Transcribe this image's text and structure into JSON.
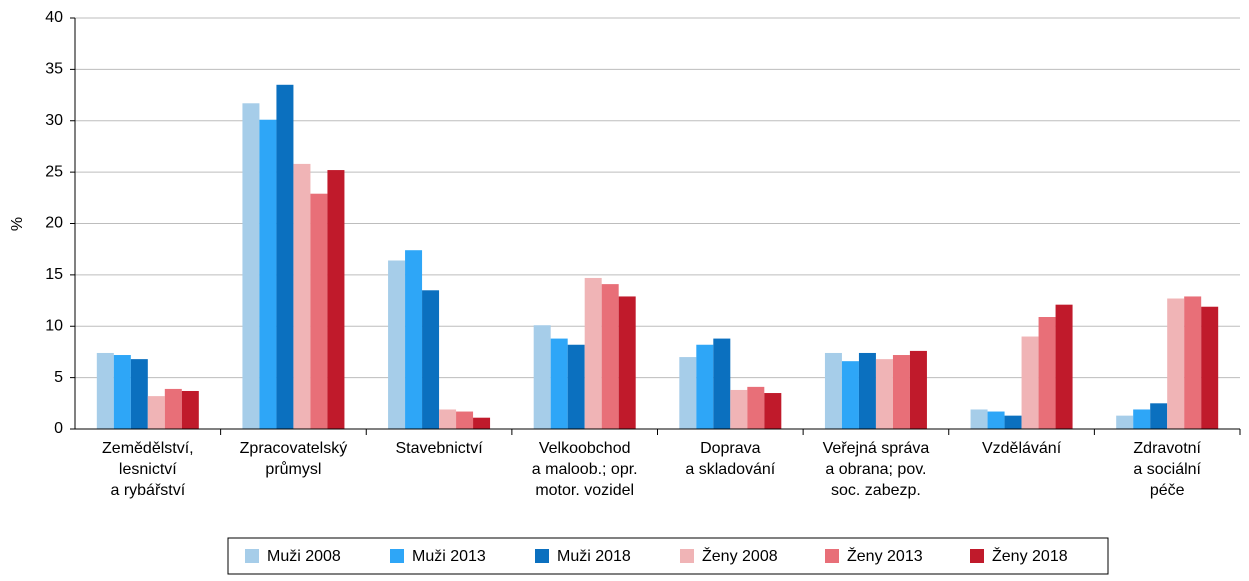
{
  "chart_data": {
    "type": "bar",
    "ylabel": "%",
    "categories": [
      [
        "Zemědělství,",
        "lesnictví",
        "a rybářství"
      ],
      [
        "Zpracovatelský",
        "průmysl"
      ],
      [
        "Stavebnictví"
      ],
      [
        "Velkoobchod",
        "a maloob.; opr.",
        "motor. vozidel"
      ],
      [
        "Doprava",
        "a skladování"
      ],
      [
        "Veřejná správa",
        "a obrana; pov.",
        "soc. zabezp."
      ],
      [
        "Vzdělávání"
      ],
      [
        "Zdravotní",
        "a sociální",
        "péče"
      ]
    ],
    "series": [
      {
        "name": "Muži 2008",
        "color": "#a6cde9",
        "values": [
          7.4,
          31.7,
          16.4,
          10.1,
          7.0,
          7.4,
          1.9,
          1.3
        ]
      },
      {
        "name": "Muži 2013",
        "color": "#2ea6f7",
        "values": [
          7.2,
          30.1,
          17.4,
          8.8,
          8.2,
          6.6,
          1.7,
          1.9
        ]
      },
      {
        "name": "Muži 2018",
        "color": "#0b70bf",
        "values": [
          6.8,
          33.5,
          13.5,
          8.2,
          8.8,
          7.4,
          1.3,
          2.5
        ]
      },
      {
        "name": "Ženy 2008",
        "color": "#f0b4b6",
        "values": [
          3.2,
          25.8,
          1.9,
          14.7,
          3.8,
          6.8,
          9.0,
          12.7
        ]
      },
      {
        "name": "Ženy 2013",
        "color": "#e86f78",
        "values": [
          3.9,
          22.9,
          1.7,
          14.1,
          4.1,
          7.2,
          10.9,
          12.9
        ]
      },
      {
        "name": "Ženy 2018",
        "color": "#c01a2b",
        "values": [
          3.7,
          25.2,
          1.1,
          12.9,
          3.5,
          7.6,
          12.1,
          11.9
        ]
      }
    ],
    "ylim": [
      0,
      40
    ],
    "yticks": [
      0,
      5,
      10,
      15,
      20,
      25,
      30,
      35,
      40
    ],
    "grid": true,
    "legend": "bottom"
  }
}
